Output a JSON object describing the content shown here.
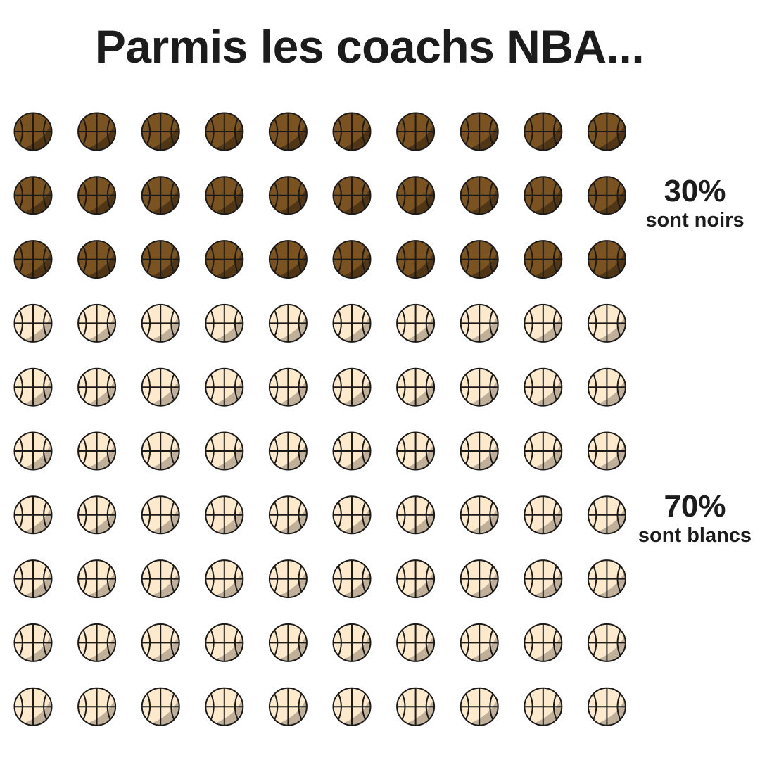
{
  "title": "Parmis les coachs NBA...",
  "chart_data": {
    "type": "waffle",
    "grid": {
      "rows": 10,
      "cols": 10
    },
    "total": 100,
    "icon": "basketball-icon",
    "categories": [
      {
        "key": "noirs",
        "percent": 30,
        "pct_label": "30%",
        "label": "sont noirs",
        "color": "#7b5320"
      },
      {
        "key": "blancs",
        "percent": 70,
        "pct_label": "70%",
        "label": "sont blancs",
        "color": "#fde9cc"
      }
    ]
  },
  "colors": {
    "outline": "#1a1a1a",
    "dark_shadow": "#4a3114",
    "light_shadow": "#b5a58f"
  }
}
